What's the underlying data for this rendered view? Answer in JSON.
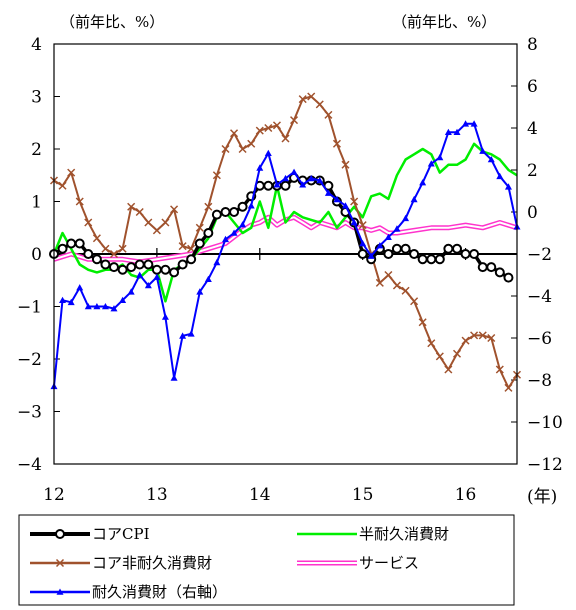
{
  "chart_data": {
    "type": "line",
    "left_axis": {
      "unit_label": "（前年比、%）",
      "ylim": [
        -4,
        4
      ],
      "ticks": [
        4,
        3,
        2,
        1,
        0,
        -1,
        -2,
        -3,
        -4
      ]
    },
    "right_axis": {
      "unit_label": "（前年比、%）",
      "ylim": [
        -12,
        8
      ],
      "ticks": [
        8,
        6,
        4,
        2,
        0,
        -2,
        -4,
        -6,
        -8,
        -10,
        -12
      ]
    },
    "x_axis": {
      "ticks": [
        "12",
        "13",
        "14",
        "15",
        "16"
      ],
      "unit_label": "(年)",
      "xlim": [
        12,
        16.5
      ]
    },
    "grid": false,
    "legend": {
      "placement": "bottom"
    },
    "series": [
      {
        "name": "コアCPI",
        "axis": "left",
        "color": "#000000",
        "style": "thick-circle",
        "points": [
          [
            12.0,
            0.0
          ],
          [
            12.083,
            0.1
          ],
          [
            12.167,
            0.2
          ],
          [
            12.25,
            0.2
          ],
          [
            12.333,
            0.0
          ],
          [
            12.417,
            -0.1
          ],
          [
            12.5,
            -0.2
          ],
          [
            12.583,
            -0.25
          ],
          [
            12.667,
            -0.3
          ],
          [
            12.75,
            -0.25
          ],
          [
            12.833,
            -0.2
          ],
          [
            12.917,
            -0.2
          ],
          [
            13.0,
            -0.3
          ],
          [
            13.083,
            -0.3
          ],
          [
            13.167,
            -0.35
          ],
          [
            13.25,
            -0.2
          ],
          [
            13.333,
            -0.1
          ],
          [
            13.417,
            0.2
          ],
          [
            13.5,
            0.4
          ],
          [
            13.583,
            0.75
          ],
          [
            13.667,
            0.8
          ],
          [
            13.75,
            0.8
          ],
          [
            13.833,
            0.9
          ],
          [
            13.917,
            1.1
          ],
          [
            14.0,
            1.3
          ],
          [
            14.083,
            1.3
          ],
          [
            14.167,
            1.3
          ],
          [
            14.25,
            1.3
          ],
          [
            14.333,
            1.45
          ],
          [
            14.417,
            1.4
          ],
          [
            14.5,
            1.4
          ],
          [
            14.583,
            1.4
          ],
          [
            14.667,
            1.3
          ],
          [
            14.75,
            1.0
          ],
          [
            14.833,
            0.8
          ],
          [
            14.917,
            0.6
          ],
          [
            15.0,
            0.0
          ],
          [
            15.083,
            -0.1
          ],
          [
            15.167,
            0.1
          ],
          [
            15.25,
            0.0
          ],
          [
            15.333,
            0.1
          ],
          [
            15.417,
            0.1
          ],
          [
            15.5,
            0.0
          ],
          [
            15.583,
            -0.1
          ],
          [
            15.667,
            -0.1
          ],
          [
            15.75,
            -0.1
          ],
          [
            15.833,
            0.1
          ],
          [
            15.917,
            0.1
          ],
          [
            16.0,
            0.0
          ],
          [
            16.083,
            0.0
          ],
          [
            16.167,
            -0.25
          ],
          [
            16.25,
            -0.25
          ],
          [
            16.333,
            -0.35
          ],
          [
            16.417,
            -0.45
          ]
        ]
      },
      {
        "name": "コア非耐久消費財",
        "axis": "left",
        "color": "#a0522d",
        "style": "x-marker",
        "points": [
          [
            12.0,
            1.4
          ],
          [
            12.083,
            1.3
          ],
          [
            12.167,
            1.55
          ],
          [
            12.25,
            1.0
          ],
          [
            12.333,
            0.6
          ],
          [
            12.417,
            0.3
          ],
          [
            12.5,
            0.1
          ],
          [
            12.583,
            0.0
          ],
          [
            12.667,
            0.1
          ],
          [
            12.75,
            0.9
          ],
          [
            12.833,
            0.8
          ],
          [
            12.917,
            0.6
          ],
          [
            13.0,
            0.45
          ],
          [
            13.083,
            0.6
          ],
          [
            13.167,
            0.85
          ],
          [
            13.25,
            0.15
          ],
          [
            13.333,
            0.1
          ],
          [
            13.417,
            0.5
          ],
          [
            13.5,
            0.9
          ],
          [
            13.583,
            1.5
          ],
          [
            13.667,
            2.0
          ],
          [
            13.75,
            2.3
          ],
          [
            13.833,
            2.0
          ],
          [
            13.917,
            2.1
          ],
          [
            14.0,
            2.35
          ],
          [
            14.083,
            2.4
          ],
          [
            14.167,
            2.45
          ],
          [
            14.25,
            2.2
          ],
          [
            14.333,
            2.55
          ],
          [
            14.417,
            2.95
          ],
          [
            14.5,
            3.0
          ],
          [
            14.583,
            2.85
          ],
          [
            14.667,
            2.65
          ],
          [
            14.75,
            2.1
          ],
          [
            14.833,
            1.7
          ],
          [
            14.917,
            1.0
          ],
          [
            15.0,
            0.55
          ],
          [
            15.083,
            0.0
          ],
          [
            15.167,
            -0.55
          ],
          [
            15.25,
            -0.4
          ],
          [
            15.333,
            -0.6
          ],
          [
            15.417,
            -0.7
          ],
          [
            15.5,
            -0.9
          ],
          [
            15.583,
            -1.3
          ],
          [
            15.667,
            -1.7
          ],
          [
            15.75,
            -1.95
          ],
          [
            15.833,
            -2.2
          ],
          [
            15.917,
            -1.9
          ],
          [
            16.0,
            -1.65
          ],
          [
            16.083,
            -1.55
          ],
          [
            16.167,
            -1.55
          ],
          [
            16.25,
            -1.6
          ],
          [
            16.333,
            -2.2
          ],
          [
            16.417,
            -2.55
          ],
          [
            16.5,
            -2.3
          ]
        ]
      },
      {
        "name": "耐久消費財（右軸）",
        "axis": "right",
        "color": "#0000ff",
        "style": "triangle",
        "points": [
          [
            12.0,
            -8.3
          ],
          [
            12.083,
            -4.2
          ],
          [
            12.167,
            -4.3
          ],
          [
            12.25,
            -3.6
          ],
          [
            12.333,
            -4.5
          ],
          [
            12.417,
            -4.5
          ],
          [
            12.5,
            -4.5
          ],
          [
            12.583,
            -4.6
          ],
          [
            12.667,
            -4.2
          ],
          [
            12.75,
            -3.8
          ],
          [
            12.833,
            -3.0
          ],
          [
            12.917,
            -3.5
          ],
          [
            13.0,
            -3.1
          ],
          [
            13.083,
            -5.0
          ],
          [
            13.167,
            -7.9
          ],
          [
            13.25,
            -5.9
          ],
          [
            13.333,
            -5.8
          ],
          [
            13.417,
            -3.8
          ],
          [
            13.5,
            -3.2
          ],
          [
            13.583,
            -2.4
          ],
          [
            13.667,
            -1.3
          ],
          [
            13.75,
            -1.0
          ],
          [
            13.833,
            -0.6
          ],
          [
            13.917,
            0.3
          ],
          [
            14.0,
            2.1
          ],
          [
            14.083,
            2.8
          ],
          [
            14.167,
            1.3
          ],
          [
            14.25,
            1.6
          ],
          [
            14.333,
            1.9
          ],
          [
            14.417,
            1.3
          ],
          [
            14.5,
            1.6
          ],
          [
            14.583,
            1.5
          ],
          [
            14.667,
            0.9
          ],
          [
            14.75,
            0.6
          ],
          [
            14.833,
            0.3
          ],
          [
            14.917,
            -0.5
          ],
          [
            15.0,
            -1.5
          ],
          [
            15.083,
            -2.1
          ],
          [
            15.167,
            -1.6
          ],
          [
            15.25,
            -1.2
          ],
          [
            15.333,
            -0.8
          ],
          [
            15.417,
            -0.3
          ],
          [
            15.5,
            0.6
          ],
          [
            15.583,
            1.4
          ],
          [
            15.667,
            2.3
          ],
          [
            15.75,
            2.6
          ],
          [
            15.833,
            3.8
          ],
          [
            15.917,
            3.8
          ],
          [
            16.0,
            4.2
          ],
          [
            16.083,
            4.2
          ],
          [
            16.167,
            2.9
          ],
          [
            16.25,
            2.5
          ],
          [
            16.333,
            1.7
          ],
          [
            16.417,
            1.2
          ],
          [
            16.5,
            -0.7
          ]
        ]
      },
      {
        "name": "半耐久消費財",
        "axis": "left",
        "color": "#00ee00",
        "style": "line",
        "points": [
          [
            12.0,
            0.0
          ],
          [
            12.083,
            0.4
          ],
          [
            12.167,
            0.1
          ],
          [
            12.25,
            -0.2
          ],
          [
            12.333,
            -0.3
          ],
          [
            12.417,
            -0.35
          ],
          [
            12.5,
            -0.3
          ],
          [
            12.583,
            -0.3
          ],
          [
            12.667,
            -0.2
          ],
          [
            12.75,
            -0.4
          ],
          [
            12.833,
            -0.45
          ],
          [
            12.917,
            -0.3
          ],
          [
            13.0,
            -0.3
          ],
          [
            13.083,
            -0.9
          ],
          [
            13.167,
            -0.3
          ],
          [
            13.25,
            -0.2
          ],
          [
            13.333,
            -0.1
          ],
          [
            13.417,
            0.1
          ],
          [
            13.5,
            0.3
          ],
          [
            13.583,
            0.7
          ],
          [
            13.667,
            0.8
          ],
          [
            13.75,
            0.6
          ],
          [
            13.833,
            0.4
          ],
          [
            13.917,
            0.5
          ],
          [
            14.0,
            1.0
          ],
          [
            14.083,
            0.5
          ],
          [
            14.167,
            1.3
          ],
          [
            14.25,
            0.6
          ],
          [
            14.333,
            0.8
          ],
          [
            14.417,
            0.7
          ],
          [
            14.5,
            0.65
          ],
          [
            14.583,
            0.6
          ],
          [
            14.667,
            0.8
          ],
          [
            14.75,
            0.5
          ],
          [
            14.833,
            0.7
          ],
          [
            14.917,
            0.9
          ],
          [
            15.0,
            0.7
          ],
          [
            15.083,
            1.1
          ],
          [
            15.167,
            1.15
          ],
          [
            15.25,
            1.05
          ],
          [
            15.333,
            1.5
          ],
          [
            15.417,
            1.8
          ],
          [
            15.5,
            1.9
          ],
          [
            15.583,
            2.0
          ],
          [
            15.667,
            1.9
          ],
          [
            15.75,
            1.55
          ],
          [
            15.833,
            1.7
          ],
          [
            15.917,
            1.7
          ],
          [
            16.0,
            1.8
          ],
          [
            16.083,
            2.1
          ],
          [
            16.167,
            1.95
          ],
          [
            16.25,
            1.9
          ],
          [
            16.333,
            1.8
          ],
          [
            16.417,
            1.6
          ],
          [
            16.5,
            1.5
          ]
        ]
      },
      {
        "name": "サービス",
        "axis": "left",
        "color": "#ff33cc",
        "style": "double-line",
        "points": [
          [
            12.0,
            -0.1
          ],
          [
            12.167,
            0.0
          ],
          [
            12.333,
            -0.1
          ],
          [
            12.5,
            -0.1
          ],
          [
            12.667,
            -0.1
          ],
          [
            12.833,
            -0.15
          ],
          [
            13.0,
            -0.1
          ],
          [
            13.167,
            -0.05
          ],
          [
            13.333,
            0.0
          ],
          [
            13.5,
            0.1
          ],
          [
            13.667,
            0.2
          ],
          [
            13.833,
            0.45
          ],
          [
            13.917,
            0.55
          ],
          [
            14.0,
            0.6
          ],
          [
            14.083,
            0.7
          ],
          [
            14.167,
            0.55
          ],
          [
            14.25,
            0.65
          ],
          [
            14.333,
            0.7
          ],
          [
            14.417,
            0.6
          ],
          [
            14.5,
            0.5
          ],
          [
            14.583,
            0.6
          ],
          [
            14.667,
            0.55
          ],
          [
            14.75,
            0.5
          ],
          [
            14.833,
            0.6
          ],
          [
            14.917,
            0.5
          ],
          [
            15.0,
            0.5
          ],
          [
            15.083,
            0.45
          ],
          [
            15.167,
            0.5
          ],
          [
            15.25,
            0.4
          ],
          [
            15.333,
            0.4
          ],
          [
            15.5,
            0.45
          ],
          [
            15.667,
            0.5
          ],
          [
            15.833,
            0.5
          ],
          [
            16.0,
            0.55
          ],
          [
            16.167,
            0.5
          ],
          [
            16.333,
            0.6
          ],
          [
            16.5,
            0.5
          ]
        ]
      }
    ]
  }
}
